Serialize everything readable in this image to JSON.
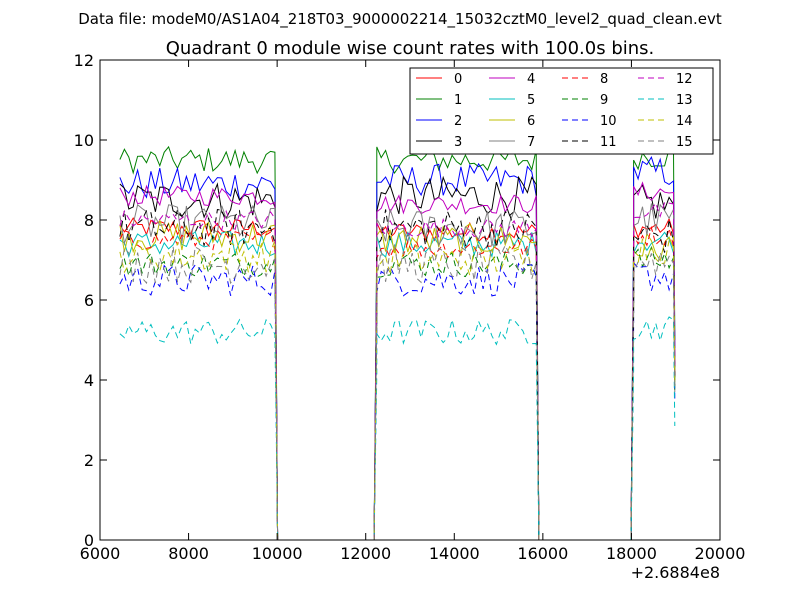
{
  "chart_data": {
    "type": "line",
    "suptitle": "Data file: modeM0/AS1A04_218T03_9000002214_15032cztM0_level2_quad_clean.evt",
    "title": "Quadrant 0 module wise count rates with 100.0s bins.",
    "xlabel": "",
    "ylabel": "",
    "x_offset_label": "+2.6884e8",
    "xlim": [
      6000,
      20000
    ],
    "ylim": [
      0,
      12
    ],
    "xticks": [
      6000,
      8000,
      10000,
      12000,
      14000,
      16000,
      18000,
      20000
    ],
    "yticks": [
      0,
      2,
      4,
      6,
      8,
      10,
      12
    ],
    "xtick_labels": [
      "6000",
      "8000",
      "10000",
      "12000",
      "14000",
      "16000",
      "18000",
      "20000"
    ],
    "ytick_labels": [
      "0",
      "2",
      "4",
      "6",
      "8",
      "10",
      "12"
    ],
    "grid": false,
    "legend_position": "top-right",
    "legend_columns": 4,
    "segments": [
      {
        "start": 6450,
        "end": 9950
      },
      {
        "start": 12250,
        "end": 15850
      },
      {
        "start": 18050,
        "end": 18950
      }
    ],
    "gaps": [
      {
        "from": 10000,
        "to": 12200
      },
      {
        "from": 15900,
        "to": 18000
      }
    ],
    "series": [
      {
        "name": "0",
        "color": "#ff0000",
        "style": "solid",
        "levels": [
          7.8,
          7.7,
          7.8
        ]
      },
      {
        "name": "1",
        "color": "#008000",
        "style": "solid",
        "levels": [
          9.5,
          9.5,
          9.6
        ]
      },
      {
        "name": "2",
        "color": "#0000ff",
        "style": "solid",
        "levels": [
          8.9,
          9.0,
          9.2
        ]
      },
      {
        "name": "3",
        "color": "#000000",
        "style": "solid",
        "levels": [
          8.5,
          8.6,
          8.4
        ]
      },
      {
        "name": "4",
        "color": "#bf00bf",
        "style": "solid",
        "levels": [
          8.6,
          8.4,
          8.7
        ]
      },
      {
        "name": "5",
        "color": "#00bfbf",
        "style": "solid",
        "levels": [
          7.4,
          7.4,
          7.5
        ]
      },
      {
        "name": "6",
        "color": "#bfbf00",
        "style": "solid",
        "levels": [
          7.6,
          7.5,
          7.3
        ]
      },
      {
        "name": "7",
        "color": "#808080",
        "style": "solid",
        "levels": [
          7.9,
          7.8,
          8.0
        ]
      },
      {
        "name": "8",
        "color": "#ff0000",
        "style": "dashed",
        "levels": [
          7.5,
          7.3,
          7.6
        ]
      },
      {
        "name": "9",
        "color": "#008000",
        "style": "dashed",
        "levels": [
          6.9,
          6.9,
          7.0
        ]
      },
      {
        "name": "10",
        "color": "#0000ff",
        "style": "dashed",
        "levels": [
          6.5,
          6.5,
          6.6
        ]
      },
      {
        "name": "11",
        "color": "#000000",
        "style": "dashed",
        "levels": [
          7.8,
          7.8,
          7.6
        ]
      },
      {
        "name": "12",
        "color": "#bf00bf",
        "style": "dashed",
        "levels": [
          8.0,
          7.8,
          8.2
        ]
      },
      {
        "name": "13",
        "color": "#00bfbf",
        "style": "dashed",
        "levels": [
          5.2,
          5.2,
          5.3
        ]
      },
      {
        "name": "14",
        "color": "#bfbf00",
        "style": "dashed",
        "levels": [
          7.1,
          7.0,
          7.3
        ]
      },
      {
        "name": "15",
        "color": "#808080",
        "style": "dashed",
        "levels": [
          6.9,
          6.9,
          7.0
        ]
      }
    ]
  }
}
